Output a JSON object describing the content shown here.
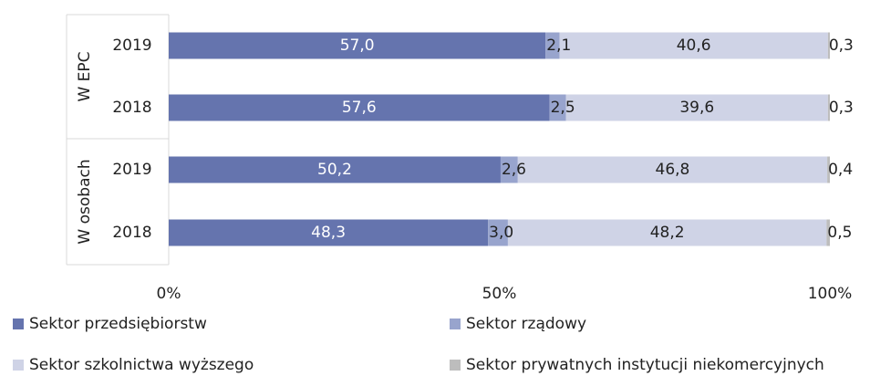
{
  "chart_data": {
    "type": "bar",
    "orientation": "horizontal",
    "stacked": true,
    "percent": true,
    "title": "",
    "groups": [
      {
        "label": "W EPC",
        "categories": [
          "2019",
          "2018"
        ]
      },
      {
        "label": "W osobach",
        "categories": [
          "2019",
          "2018"
        ]
      }
    ],
    "categories": [
      "W EPC 2019",
      "W EPC 2018",
      "W osobach 2019",
      "W osobach 2018"
    ],
    "series": [
      {
        "name": "Sektor przedsiębiorstw",
        "color": "#6574ae",
        "values": [
          57.0,
          57.6,
          50.2,
          48.3
        ],
        "labels": [
          "57,0",
          "57,6",
          "50,2",
          "48,3"
        ]
      },
      {
        "name": "Sektor rządowy",
        "color": "#98a4cd",
        "values": [
          2.1,
          2.5,
          2.6,
          3.0
        ],
        "labels": [
          "2,1",
          "2,5",
          "2,6",
          "3,0"
        ]
      },
      {
        "name": "Sektor szkolnictwa wyższego",
        "color": "#cfd3e6",
        "values": [
          40.6,
          39.6,
          46.8,
          48.2
        ],
        "labels": [
          "40,6",
          "39,6",
          "46,8",
          "48,2"
        ]
      },
      {
        "name": "Sektor prywatnych instytucji niekomercyjnych",
        "color": "#bdbdbd",
        "values": [
          0.3,
          0.3,
          0.4,
          0.5
        ],
        "labels": [
          "0,3",
          "0,3",
          "0,4",
          "0,5"
        ]
      }
    ],
    "xlim": [
      0,
      100
    ],
    "x_ticks": [
      "0%",
      "50%",
      "100%"
    ],
    "grid": false,
    "legend_position": "bottom"
  }
}
